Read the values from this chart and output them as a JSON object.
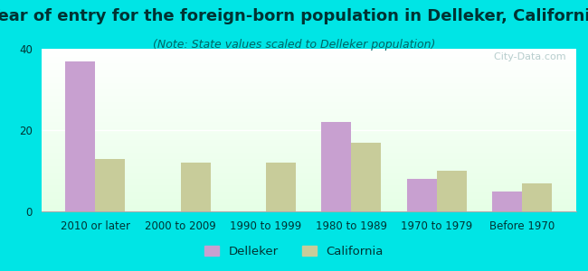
{
  "title": "Year of entry for the foreign-born population in Delleker, California",
  "subtitle": "(Note: State values scaled to Delleker population)",
  "categories": [
    "2010 or later",
    "2000 to 2009",
    "1990 to 1999",
    "1980 to 1989",
    "1970 to 1979",
    "Before 1970"
  ],
  "delleker_values": [
    37,
    0,
    0,
    22,
    8,
    5
  ],
  "california_values": [
    13,
    12,
    12,
    17,
    10,
    7
  ],
  "delleker_color": "#c8a0d0",
  "california_color": "#c8cc9a",
  "background_outer": "#00e5e5",
  "ylim": [
    0,
    40
  ],
  "yticks": [
    0,
    20,
    40
  ],
  "bar_width": 0.35,
  "watermark": "  City-Data.com",
  "legend_delleker": "Delleker",
  "legend_california": "California",
  "title_fontsize": 13,
  "subtitle_fontsize": 9,
  "tick_fontsize": 8.5
}
